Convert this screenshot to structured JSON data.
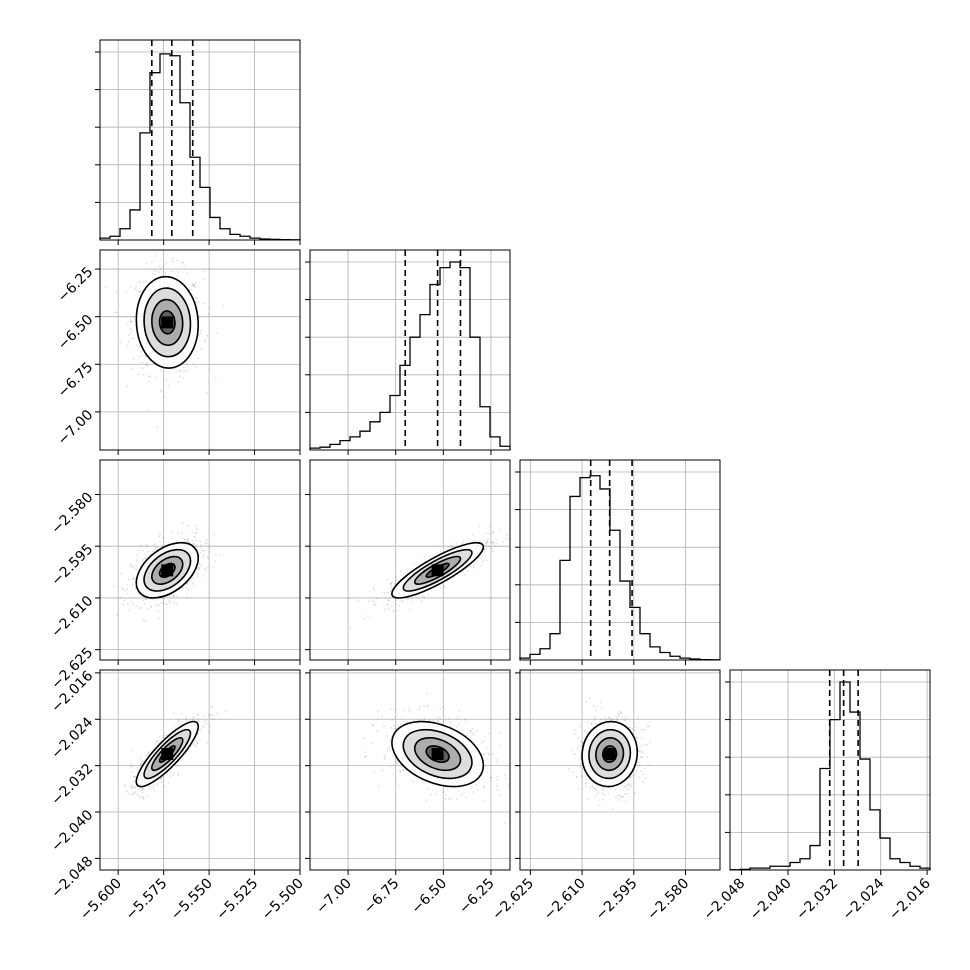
{
  "chart_data": {
    "type": "corner",
    "grid": true,
    "parameters": [
      {
        "index": 0,
        "range": [
          -5.61,
          -5.5
        ],
        "ticks": [
          -5.6,
          -5.575,
          -5.55,
          -5.525,
          -5.5
        ],
        "tick_labels": [
          "−5.600",
          "−5.575",
          "−5.550",
          "−5.525",
          "−5.500"
        ],
        "mean": -5.573,
        "sd": 0.0085,
        "quantiles": [
          -5.5815,
          -5.5705,
          -5.559
        ]
      },
      {
        "index": 1,
        "range": [
          -7.2,
          -6.15
        ],
        "ticks": [
          -7.0,
          -6.75,
          -6.5,
          -6.25
        ],
        "tick_labels": [
          "−7.00",
          "−6.75",
          "−6.50",
          "−6.25"
        ],
        "mean": -6.53,
        "sd": 0.12,
        "quantiles": [
          -6.7,
          -6.53,
          -6.41
        ]
      },
      {
        "index": 2,
        "range": [
          -2.628,
          -2.57
        ],
        "ticks": [
          -2.625,
          -2.61,
          -2.595,
          -2.58
        ],
        "tick_labels": [
          "−2.625",
          "−2.610",
          "−2.595",
          "−2.580"
        ],
        "mean": -2.602,
        "sd": 0.004,
        "quantiles": [
          -2.6075,
          -2.602,
          -2.5955
        ]
      },
      {
        "index": 3,
        "range": [
          -2.05,
          -2.0155
        ],
        "ticks": [
          -2.048,
          -2.04,
          -2.032,
          -2.024,
          -2.016
        ],
        "tick_labels": [
          "−2.048",
          "−2.040",
          "−2.032",
          "−2.024",
          "−2.016"
        ],
        "mean": -2.03,
        "sd": 0.0028,
        "quantiles": [
          -2.0328,
          -2.0304,
          -2.0279
        ]
      }
    ],
    "histograms": [
      {
        "param": 0,
        "bins": 20,
        "counts": [
          0.01,
          0.02,
          0.06,
          0.16,
          0.57,
          0.89,
          0.99,
          0.98,
          0.73,
          0.44,
          0.28,
          0.12,
          0.06,
          0.03,
          0.02,
          0.01,
          0.005,
          0.003,
          0.002,
          0.001
        ]
      },
      {
        "param": 1,
        "bins": 20,
        "counts": [
          0.01,
          0.015,
          0.03,
          0.05,
          0.07,
          0.1,
          0.15,
          0.2,
          0.29,
          0.45,
          0.6,
          0.72,
          0.88,
          0.97,
          1.0,
          0.97,
          0.6,
          0.23,
          0.07,
          0.02
        ]
      },
      {
        "param": 2,
        "bins": 20,
        "counts": [
          0.01,
          0.03,
          0.06,
          0.14,
          0.53,
          0.87,
          0.97,
          0.98,
          0.91,
          0.69,
          0.42,
          0.28,
          0.14,
          0.07,
          0.04,
          0.02,
          0.01,
          0.005,
          0.002,
          0.001
        ]
      },
      {
        "param": 3,
        "bins": 20,
        "counts": [
          0.001,
          0.003,
          0.01,
          0.01,
          0.02,
          0.02,
          0.04,
          0.06,
          0.13,
          0.54,
          0.8,
          1.0,
          0.84,
          0.59,
          0.32,
          0.17,
          0.06,
          0.04,
          0.02,
          0.01
        ]
      }
    ],
    "pairs": [
      {
        "x": 0,
        "y": 1,
        "correlation": -0.05
      },
      {
        "x": 0,
        "y": 2,
        "correlation": 0.45
      },
      {
        "x": 1,
        "y": 2,
        "correlation": 0.85
      },
      {
        "x": 0,
        "y": 3,
        "correlation": 0.85
      },
      {
        "x": 1,
        "y": 3,
        "correlation": -0.35
      },
      {
        "x": 2,
        "y": 3,
        "correlation": 0.05
      }
    ],
    "contour_levels_sigma": [
      0.5,
      1.0,
      1.5,
      2.0
    ]
  }
}
